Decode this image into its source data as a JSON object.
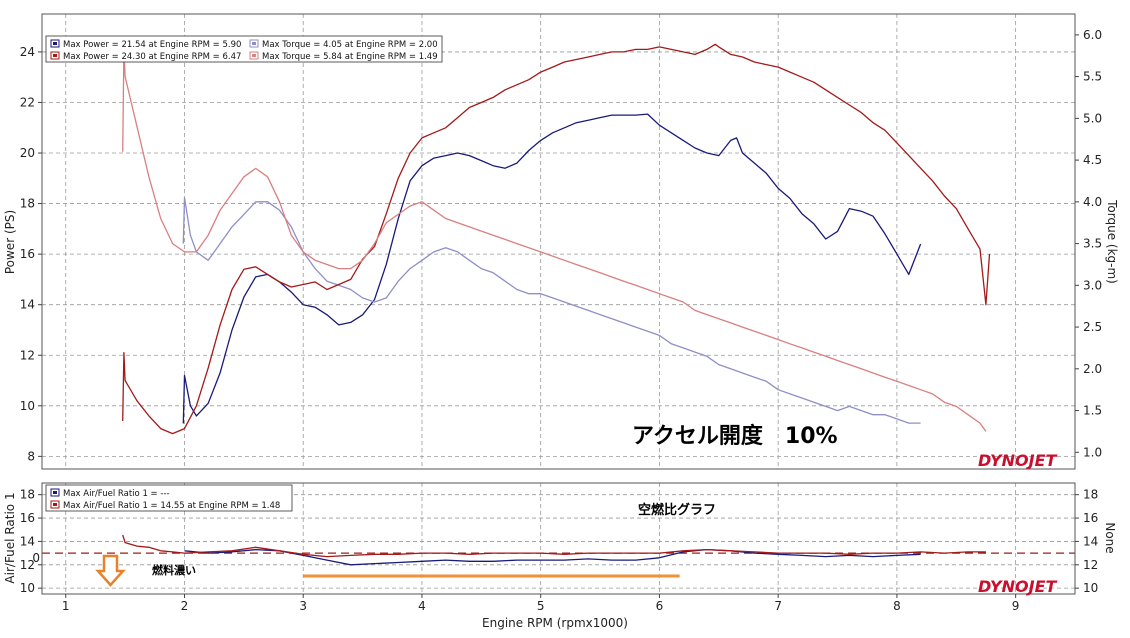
{
  "chart_data": [
    {
      "type": "line",
      "xlabel": "Engine RPM (rpmx1000)",
      "ylabel": "Power (PS)",
      "y2label": "Torque (kg-m)",
      "xlim": [
        0.8,
        9.5
      ],
      "ylim": [
        7.5,
        25.5
      ],
      "y2lim": [
        0.8,
        6.25
      ],
      "x_ticks": [
        "1",
        "2",
        "3",
        "4",
        "5",
        "6",
        "7",
        "8",
        "9"
      ],
      "y_ticks": [
        "8",
        "10",
        "12",
        "14",
        "16",
        "18",
        "20",
        "22",
        "24"
      ],
      "y2_ticks": [
        "1.0",
        "1.5",
        "2.0",
        "2.5",
        "3.0",
        "3.5",
        "4.0",
        "4.5",
        "5.0",
        "5.5",
        "6.0"
      ],
      "grid": true,
      "legend_position": "top-left",
      "legend": [
        "Max Power = 21.54 at Engine RPM = 5.90",
        "Max Torque = 4.05 at Engine RPM = 2.00",
        "Max Power = 24.30 at Engine RPM = 6.47",
        "Max Torque = 5.84 at Engine RPM = 1.49"
      ],
      "annotation": "アクセル開度　10%",
      "logo": "DYNOJET",
      "series": [
        {
          "axis": "left",
          "color": "#1a1a7a",
          "x": [
            1.99,
            2.0,
            2.05,
            2.1,
            2.2,
            2.3,
            2.4,
            2.5,
            2.6,
            2.7,
            2.8,
            2.9,
            3.0,
            3.1,
            3.2,
            3.3,
            3.4,
            3.5,
            3.6,
            3.7,
            3.8,
            3.9,
            4.0,
            4.1,
            4.2,
            4.3,
            4.4,
            4.5,
            4.6,
            4.7,
            4.8,
            4.9,
            5.0,
            5.1,
            5.2,
            5.3,
            5.4,
            5.5,
            5.6,
            5.7,
            5.8,
            5.9,
            6.0,
            6.1,
            6.2,
            6.3,
            6.4,
            6.5,
            6.6,
            6.65,
            6.7,
            6.8,
            6.9,
            7.0,
            7.1,
            7.2,
            7.3,
            7.4,
            7.5,
            7.6,
            7.7,
            7.8,
            7.9,
            8.0,
            8.1,
            8.2
          ],
          "y": [
            9.3,
            11.2,
            10.0,
            9.6,
            10.1,
            11.3,
            13.0,
            14.3,
            15.1,
            15.2,
            14.9,
            14.5,
            14.0,
            13.9,
            13.6,
            13.2,
            13.3,
            13.6,
            14.2,
            15.6,
            17.4,
            18.9,
            19.5,
            19.8,
            19.9,
            20.0,
            19.9,
            19.7,
            19.5,
            19.4,
            19.6,
            20.1,
            20.5,
            20.8,
            21.0,
            21.2,
            21.3,
            21.4,
            21.5,
            21.5,
            21.5,
            21.54,
            21.1,
            20.8,
            20.5,
            20.2,
            20.0,
            19.9,
            20.5,
            20.6,
            20.0,
            19.6,
            19.2,
            18.6,
            18.2,
            17.6,
            17.2,
            16.6,
            16.9,
            17.8,
            17.7,
            17.5,
            16.8,
            16.0,
            15.2,
            16.4
          ]
        },
        {
          "axis": "right",
          "color": "#8f8fc6",
          "x": [
            1.99,
            2.0,
            2.05,
            2.1,
            2.2,
            2.3,
            2.4,
            2.5,
            2.6,
            2.7,
            2.8,
            2.9,
            3.0,
            3.1,
            3.2,
            3.3,
            3.4,
            3.5,
            3.6,
            3.7,
            3.8,
            3.9,
            4.0,
            4.1,
            4.2,
            4.3,
            4.4,
            4.5,
            4.6,
            4.7,
            4.8,
            4.9,
            5.0,
            5.1,
            5.2,
            5.3,
            5.4,
            5.5,
            5.6,
            5.7,
            5.8,
            5.9,
            6.0,
            6.1,
            6.2,
            6.3,
            6.4,
            6.5,
            6.6,
            6.7,
            6.8,
            6.9,
            7.0,
            7.1,
            7.2,
            7.3,
            7.4,
            7.5,
            7.6,
            7.7,
            7.8,
            7.9,
            8.0,
            8.1,
            8.2
          ],
          "y": [
            3.5,
            4.05,
            3.6,
            3.4,
            3.3,
            3.5,
            3.7,
            3.85,
            4.0,
            4.0,
            3.9,
            3.7,
            3.4,
            3.2,
            3.05,
            3.0,
            2.95,
            2.85,
            2.8,
            2.85,
            3.05,
            3.2,
            3.3,
            3.4,
            3.45,
            3.4,
            3.3,
            3.2,
            3.15,
            3.05,
            2.95,
            2.9,
            2.9,
            2.85,
            2.8,
            2.75,
            2.7,
            2.65,
            2.6,
            2.55,
            2.5,
            2.45,
            2.4,
            2.3,
            2.25,
            2.2,
            2.15,
            2.05,
            2.0,
            1.95,
            1.9,
            1.85,
            1.75,
            1.7,
            1.65,
            1.6,
            1.55,
            1.5,
            1.55,
            1.5,
            1.45,
            1.45,
            1.4,
            1.35,
            1.35
          ]
        },
        {
          "axis": "left",
          "color": "#a31a1a",
          "x": [
            1.48,
            1.49,
            1.5,
            1.6,
            1.7,
            1.8,
            1.9,
            2.0,
            2.1,
            2.2,
            2.3,
            2.4,
            2.5,
            2.6,
            2.7,
            2.8,
            2.9,
            3.0,
            3.1,
            3.2,
            3.3,
            3.4,
            3.5,
            3.6,
            3.7,
            3.8,
            3.9,
            4.0,
            4.1,
            4.2,
            4.3,
            4.4,
            4.5,
            4.6,
            4.7,
            4.8,
            4.9,
            5.0,
            5.1,
            5.2,
            5.3,
            5.4,
            5.5,
            5.6,
            5.7,
            5.8,
            5.9,
            6.0,
            6.1,
            6.2,
            6.3,
            6.4,
            6.47,
            6.5,
            6.6,
            6.7,
            6.8,
            6.9,
            7.0,
            7.1,
            7.2,
            7.3,
            7.4,
            7.5,
            7.6,
            7.7,
            7.8,
            7.9,
            8.0,
            8.1,
            8.2,
            8.3,
            8.4,
            8.5,
            8.6,
            8.7,
            8.75,
            8.78
          ],
          "y": [
            9.4,
            12.1,
            11.0,
            10.2,
            9.6,
            9.1,
            8.9,
            9.1,
            10.0,
            11.5,
            13.2,
            14.6,
            15.4,
            15.5,
            15.2,
            14.9,
            14.7,
            14.8,
            14.9,
            14.6,
            14.8,
            15.0,
            15.8,
            16.3,
            17.6,
            19.0,
            20.0,
            20.6,
            20.8,
            21.0,
            21.4,
            21.8,
            22.0,
            22.2,
            22.5,
            22.7,
            22.9,
            23.2,
            23.4,
            23.6,
            23.7,
            23.8,
            23.9,
            24.0,
            24.0,
            24.1,
            24.1,
            24.2,
            24.1,
            24.0,
            23.9,
            24.1,
            24.3,
            24.2,
            23.9,
            23.8,
            23.6,
            23.5,
            23.4,
            23.2,
            23.0,
            22.8,
            22.5,
            22.2,
            21.9,
            21.6,
            21.2,
            20.9,
            20.4,
            19.9,
            19.4,
            18.9,
            18.3,
            17.8,
            17.0,
            16.2,
            14.0,
            16.0
          ]
        },
        {
          "axis": "right",
          "color": "#d97f7f",
          "x": [
            1.48,
            1.49,
            1.5,
            1.6,
            1.7,
            1.8,
            1.9,
            2.0,
            2.1,
            2.2,
            2.3,
            2.4,
            2.5,
            2.6,
            2.7,
            2.8,
            2.9,
            3.0,
            3.1,
            3.2,
            3.3,
            3.4,
            3.5,
            3.6,
            3.7,
            3.8,
            3.9,
            4.0,
            4.1,
            4.2,
            4.3,
            4.4,
            4.5,
            4.6,
            4.7,
            4.8,
            4.9,
            5.0,
            5.1,
            5.2,
            5.3,
            5.4,
            5.5,
            5.6,
            5.7,
            5.8,
            5.9,
            6.0,
            6.1,
            6.2,
            6.3,
            6.4,
            6.5,
            6.6,
            6.7,
            6.8,
            6.9,
            7.0,
            7.1,
            7.2,
            7.3,
            7.4,
            7.5,
            7.6,
            7.7,
            7.8,
            7.9,
            8.0,
            8.1,
            8.2,
            8.3,
            8.4,
            8.5,
            8.6,
            8.7,
            8.75
          ],
          "y": [
            4.6,
            5.84,
            5.5,
            4.9,
            4.3,
            3.8,
            3.5,
            3.4,
            3.4,
            3.6,
            3.9,
            4.1,
            4.3,
            4.4,
            4.3,
            4.0,
            3.6,
            3.4,
            3.3,
            3.25,
            3.2,
            3.2,
            3.3,
            3.5,
            3.75,
            3.85,
            3.95,
            4.0,
            3.9,
            3.8,
            3.75,
            3.7,
            3.65,
            3.6,
            3.55,
            3.5,
            3.45,
            3.4,
            3.35,
            3.3,
            3.25,
            3.2,
            3.15,
            3.1,
            3.05,
            3.0,
            2.95,
            2.9,
            2.85,
            2.8,
            2.7,
            2.65,
            2.6,
            2.55,
            2.5,
            2.45,
            2.4,
            2.35,
            2.3,
            2.25,
            2.2,
            2.15,
            2.1,
            2.05,
            2.0,
            1.95,
            1.9,
            1.85,
            1.8,
            1.75,
            1.7,
            1.6,
            1.55,
            1.45,
            1.35,
            1.25
          ]
        }
      ]
    },
    {
      "type": "line",
      "xlabel": "Engine RPM (rpmx1000)",
      "ylabel": "Air/Fuel Ratio 1",
      "y2label": "None",
      "xlim": [
        0.8,
        9.5
      ],
      "ylim": [
        9.5,
        19.0
      ],
      "y_ticks": [
        "10",
        "12",
        "14",
        "16",
        "18"
      ],
      "y2_ticks": [
        "10",
        "12",
        "14",
        "16",
        "18"
      ],
      "grid": true,
      "legend_position": "top-left",
      "legend": [
        "Max Air/Fuel Ratio 1 = ---",
        "Max Air/Fuel Ratio 1 = 14.55 at Engine RPM = 1.48"
      ],
      "reference_line": 13.0,
      "annotations": [
        "空燃比グラフ",
        "燃料濃い"
      ],
      "left_marker": "0",
      "highlight_range": [
        3.0,
        6.17
      ],
      "logo": "DYNOJET",
      "series": [
        {
          "color": "#1a1a7a",
          "x": [
            2.0,
            2.2,
            2.4,
            2.6,
            2.8,
            3.0,
            3.2,
            3.4,
            3.6,
            3.8,
            4.0,
            4.2,
            4.4,
            4.6,
            4.8,
            5.0,
            5.2,
            5.4,
            5.6,
            5.8,
            6.0,
            6.2,
            6.4,
            6.6,
            6.8,
            7.0,
            7.2,
            7.4,
            7.6,
            7.8,
            8.0,
            8.2
          ],
          "y": [
            13.2,
            13.0,
            13.1,
            13.3,
            13.2,
            12.8,
            12.4,
            12.0,
            12.1,
            12.2,
            12.3,
            12.4,
            12.3,
            12.3,
            12.4,
            12.4,
            12.4,
            12.5,
            12.4,
            12.4,
            12.6,
            13.1,
            13.3,
            13.2,
            13.0,
            12.9,
            12.8,
            12.7,
            12.8,
            12.7,
            12.8,
            12.9
          ]
        },
        {
          "color": "#a31a1a",
          "x": [
            1.48,
            1.5,
            1.6,
            1.7,
            1.8,
            1.9,
            2.0,
            2.2,
            2.4,
            2.6,
            2.8,
            3.0,
            3.2,
            3.4,
            3.6,
            3.8,
            4.0,
            4.2,
            4.4,
            4.6,
            4.8,
            5.0,
            5.2,
            5.4,
            5.6,
            5.8,
            6.0,
            6.2,
            6.4,
            6.6,
            6.8,
            7.0,
            7.2,
            7.4,
            7.6,
            7.8,
            8.0,
            8.2,
            8.4,
            8.6,
            8.75
          ],
          "y": [
            14.55,
            13.9,
            13.6,
            13.5,
            13.2,
            13.1,
            13.0,
            13.1,
            13.2,
            13.5,
            13.2,
            12.9,
            12.7,
            12.8,
            12.9,
            12.9,
            13.0,
            13.0,
            12.9,
            13.0,
            13.0,
            13.0,
            12.9,
            13.0,
            13.0,
            13.0,
            13.0,
            13.2,
            13.3,
            13.2,
            13.1,
            13.0,
            13.0,
            13.0,
            12.9,
            13.0,
            13.0,
            13.1,
            13.0,
            13.1,
            13.1
          ]
        }
      ]
    }
  ]
}
